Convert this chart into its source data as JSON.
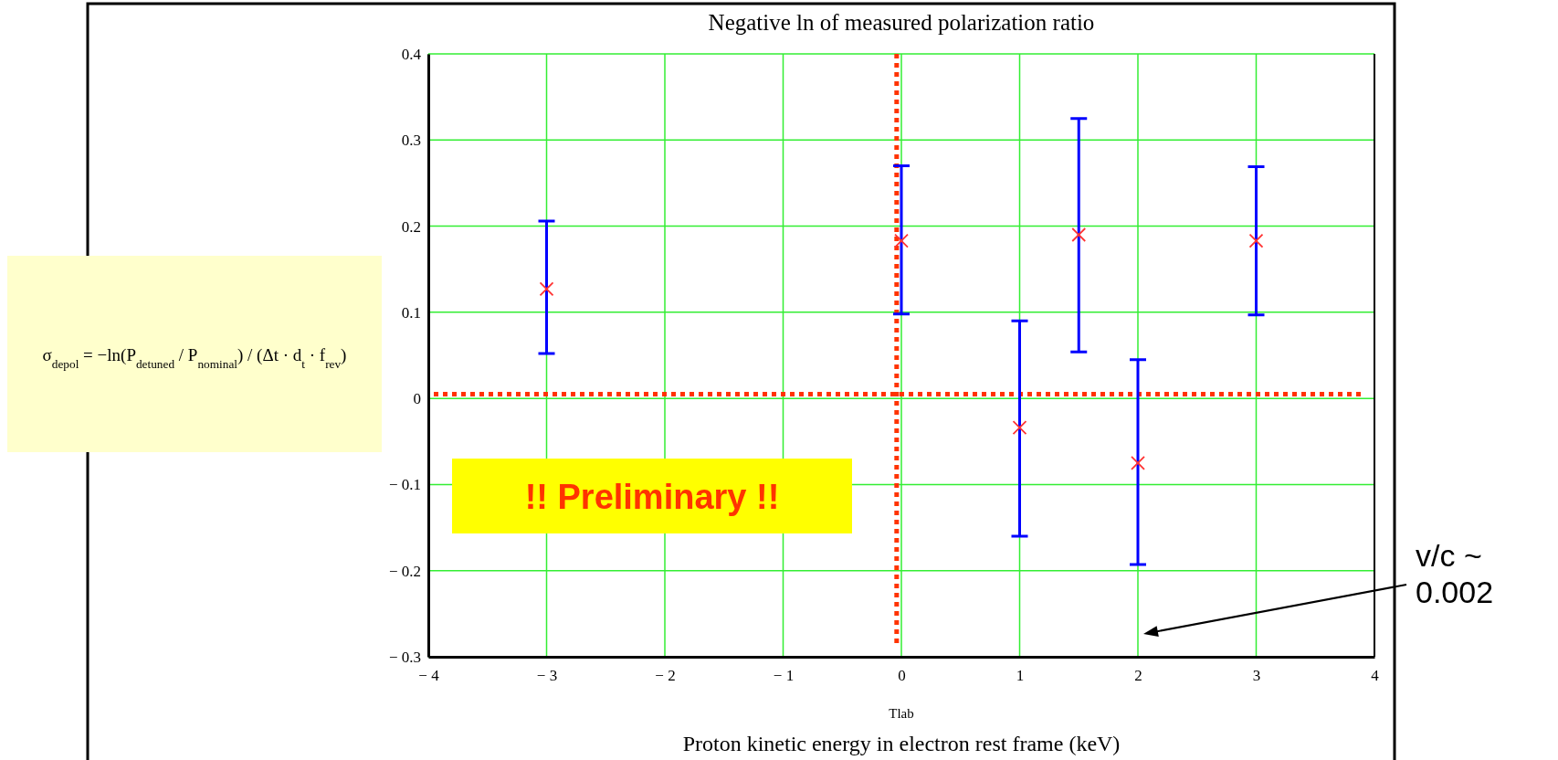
{
  "chart_data": {
    "type": "scatter",
    "title": "Negative ln of measured polarization ratio",
    "xlabel": "Tlab",
    "x": [
      -3,
      0,
      1,
      1.5,
      2,
      3
    ],
    "series": [
      {
        "color": "#ff3333",
        "values": [
          0.127,
          0.183,
          -0.034,
          0.19,
          -0.075,
          0.183
        ],
        "errors": [
          [
            0.052,
            0.206
          ],
          [
            0.098,
            0.27
          ],
          [
            -0.16,
            0.09
          ],
          [
            0.054,
            0.325
          ],
          [
            -0.193,
            0.045
          ],
          [
            0.097,
            0.269
          ]
        ]
      }
    ],
    "marker": "cross",
    "grid": true,
    "xlim": [
      -4,
      4
    ],
    "ylim": [
      -0.3,
      0.4
    ],
    "xticks": [
      {
        "value": -4,
        "label": "− 4"
      },
      {
        "value": -3,
        "label": "− 3"
      },
      {
        "value": -2,
        "label": "− 2"
      },
      {
        "value": -1,
        "label": "− 1"
      },
      0,
      1,
      2,
      3,
      4
    ],
    "yticks": [
      {
        "value": -0.3,
        "label": "− 0.3"
      },
      {
        "value": -0.2,
        "label": "− 0.2"
      },
      {
        "value": -0.1,
        "label": "− 0.1"
      },
      0,
      0.1,
      0.2,
      0.3,
      0.4
    ],
    "ref_lines": [
      {
        "axis": "y",
        "value": 0.005,
        "color": "#ff3300",
        "line_style": "dotted"
      },
      {
        "axis": "x",
        "value": -0.04,
        "color": "#ff3300",
        "line_style": "dotted"
      }
    ],
    "annotations": [
      "Proton kinetic energy in electron rest frame (keV)",
      "σ$_{depol}$ = −ln(P$_{detuned}$ / P$_{nominal}$) / (Δt · d$_{t}$ · f$_{rev}$)",
      "!! Preliminary !!",
      "v/c ~ 0.002"
    ]
  }
}
